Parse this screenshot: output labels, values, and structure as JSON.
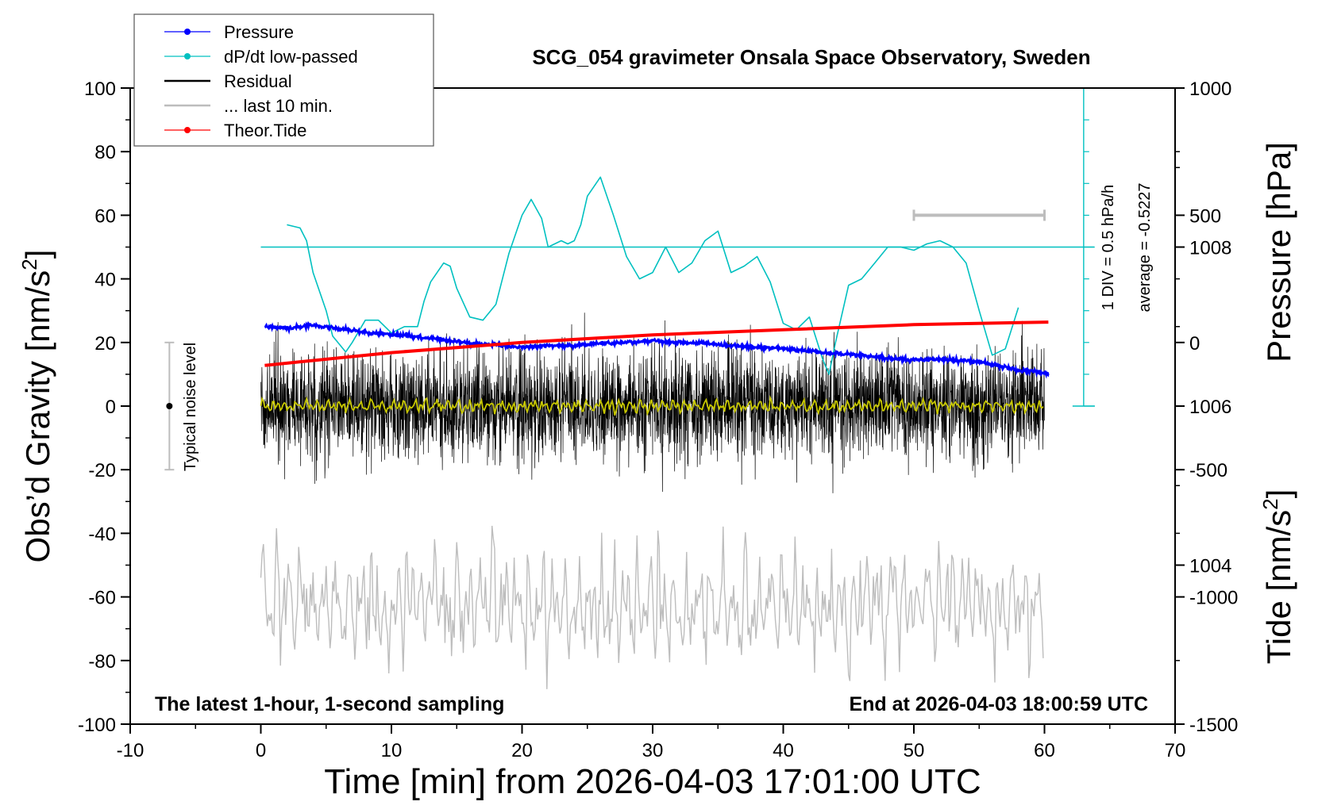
{
  "chart_data": {
    "type": "line",
    "title": "SCG_054 gravimeter Onsala Space Observatory, Sweden",
    "xlabel": "Time [min] from 2026-04-03 17:01:00 UTC",
    "ylabel_left_main": "Obs’d Gravity [nm/s",
    "ylabel_left_sup": "2",
    "ylabel_left_tail": "]",
    "ylabel_right_pressure": "Pressure [hPa]",
    "ylabel_right_tide_main": "Tide [nm/s",
    "ylabel_right_tide_sup": "2",
    "ylabel_right_tide_tail": "]",
    "xlim": [
      -10,
      70
    ],
    "ylim": [
      -100,
      100
    ],
    "pressure_lim": [
      1002,
      1010
    ],
    "tide_lim": [
      -1500,
      1000
    ],
    "x_ticks": [
      "-10",
      "0",
      "10",
      "20",
      "30",
      "40",
      "50",
      "60",
      "70"
    ],
    "x_tick_values": [
      -10,
      0,
      10,
      20,
      30,
      40,
      50,
      60,
      70
    ],
    "y_ticks": [
      "100",
      "80",
      "60",
      "40",
      "20",
      "0",
      "-20",
      "-40",
      "-60",
      "-80",
      "-100"
    ],
    "y_tick_values": [
      100,
      80,
      60,
      40,
      20,
      0,
      -20,
      -40,
      -60,
      -80,
      -100
    ],
    "pressure_ticks": [
      "1008",
      "1006",
      "1004"
    ],
    "pressure_tick_values": [
      1008,
      1006,
      1004
    ],
    "tide_ticks": [
      "1000",
      "500",
      "0",
      "-500",
      "-1000",
      "-1500"
    ],
    "tide_tick_values": [
      1000,
      500,
      0,
      -500,
      -1000,
      -1500
    ],
    "legend": {
      "placement": "top-left",
      "entries": [
        {
          "label": "Pressure",
          "color": "#0000ff",
          "marker": true
        },
        {
          "label": "dP/dt low-passed",
          "color": "#00c0c0",
          "marker": true
        },
        {
          "label": "Residual",
          "color": "#000000",
          "marker": false
        },
        {
          "label": "... last 10 min.",
          "color": "#bdbdbd",
          "marker": false
        },
        {
          "label": "Theor.Tide",
          "color": "#ff0000",
          "marker": true
        }
      ]
    },
    "annotations": {
      "bottom_left": "The latest 1-hour, 1-second sampling",
      "bottom_right": "End at 2026-04-03 18:00:59 UTC",
      "noise_label": "Typical noise level",
      "dpdt_scale": "1 DIV = 0.5 hPa/h",
      "dpdt_average": "average = -0.5227"
    },
    "noise_level": {
      "x": -7,
      "center": 0,
      "range": [
        -20,
        20
      ]
    },
    "last10_bar": {
      "x_range": [
        50,
        60
      ],
      "tide": 500
    },
    "dpdt_axis": {
      "x": 63,
      "range": [
        0,
        100
      ],
      "baseline": 50
    },
    "series": [
      {
        "name": "Pressure",
        "axis": "pressure",
        "color": "#0000ff",
        "x": [
          0.3,
          2,
          4,
          6,
          8,
          10,
          12,
          14,
          16,
          18,
          20,
          22,
          24,
          26,
          28,
          30,
          32,
          34,
          36,
          38,
          40,
          42,
          44,
          46,
          48,
          50,
          52,
          54,
          56,
          58,
          60,
          60.3
        ],
        "values": [
          1007.0,
          1006.98,
          1007.02,
          1006.97,
          1006.93,
          1006.9,
          1006.87,
          1006.83,
          1006.79,
          1006.77,
          1006.74,
          1006.76,
          1006.76,
          1006.79,
          1006.8,
          1006.82,
          1006.8,
          1006.79,
          1006.76,
          1006.74,
          1006.72,
          1006.69,
          1006.66,
          1006.64,
          1006.6,
          1006.58,
          1006.59,
          1006.57,
          1006.53,
          1006.45,
          1006.42,
          1006.4
        ]
      },
      {
        "name": "dP/dt low-passed",
        "axis": "gravity",
        "color": "#00c0c0",
        "x": [
          2,
          3,
          3.5,
          4,
          5,
          5.5,
          6.5,
          7,
          8,
          9,
          10,
          11,
          12,
          12.5,
          13,
          14,
          14.5,
          15,
          16,
          17,
          18,
          19,
          20,
          20.7,
          21.5,
          22,
          22.5,
          23,
          23.5,
          24,
          24.5,
          25,
          26,
          27,
          28,
          29,
          30,
          31,
          32,
          33,
          34,
          35,
          36,
          37,
          38,
          39,
          40,
          41,
          42,
          43,
          43.5,
          44,
          45,
          46,
          47,
          48,
          49,
          50,
          51,
          52,
          53,
          54,
          55,
          56,
          57,
          58
        ],
        "values": [
          57,
          56,
          52,
          42,
          30,
          22,
          17,
          20,
          27,
          27,
          23,
          25,
          25,
          33,
          39,
          45,
          44,
          37,
          28,
          27,
          32,
          48,
          60,
          65,
          59,
          50,
          51,
          52,
          51,
          52,
          57,
          66,
          72,
          60,
          47,
          40,
          42,
          50,
          42,
          45,
          52,
          55,
          42,
          44,
          47,
          39,
          26,
          24,
          28,
          15,
          10,
          20,
          38,
          40,
          45,
          50,
          50,
          49,
          51,
          52,
          50,
          45,
          30,
          16,
          18,
          31
        ]
      },
      {
        "name": "Residual",
        "axis": "gravity",
        "color": "#000000",
        "x_range": [
          0,
          60
        ],
        "amplitude": 15,
        "range": [
          -34,
          31
        ]
      },
      {
        "name": "",
        "axis": "gravity",
        "color": "#c8c800",
        "x_range": [
          0,
          60
        ],
        "amplitude": 1.8
      },
      {
        "name": "... last 10 min.",
        "axis": "gravity",
        "color": "#bdbdbd",
        "x_range": [
          0,
          60
        ],
        "center": -62,
        "range": [
          -89,
          -37
        ]
      },
      {
        "name": "Theor.Tide",
        "axis": "tide",
        "color": "#ff0000",
        "x": [
          0.3,
          10,
          20,
          30,
          40,
          50,
          60.3
        ],
        "values": [
          -90,
          -40,
          0,
          30,
          50,
          70,
          80
        ]
      }
    ]
  }
}
